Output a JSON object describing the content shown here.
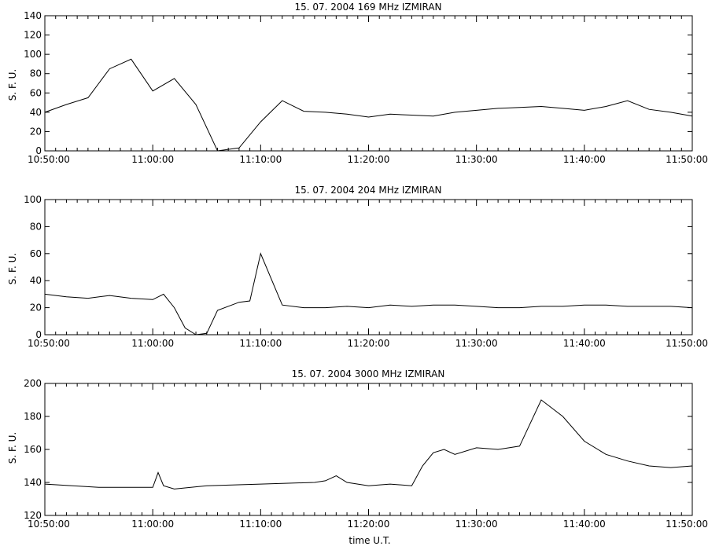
{
  "xlabel": "time U.T.",
  "chart_data": [
    {
      "type": "line",
      "title": "15. 07. 2004   169 MHz   IZMIRAN",
      "ylabel": "S. F. U.",
      "ylim": [
        0,
        140
      ],
      "yticks": [
        0,
        20,
        40,
        60,
        80,
        100,
        120,
        140
      ],
      "xlim": [
        "10:50:00",
        "11:50:00"
      ],
      "xtick_labels": [
        "10:50:00",
        "11:00:00",
        "11:10:00",
        "11:20:00",
        "11:30:00",
        "11:40:00",
        "11:50:00"
      ],
      "series": [
        {
          "x": [
            0,
            2,
            4,
            6,
            8,
            10,
            12,
            14,
            16,
            18,
            20,
            22,
            24,
            26,
            28,
            30,
            32,
            34,
            36,
            38,
            40,
            42,
            44,
            46,
            48,
            50,
            52,
            54,
            56,
            58,
            60
          ],
          "y": [
            40,
            48,
            55,
            85,
            95,
            62,
            75,
            48,
            0,
            3,
            30,
            52,
            41,
            40,
            38,
            35,
            38,
            37,
            36,
            40,
            42,
            44,
            45,
            46,
            44,
            42,
            46,
            52,
            43,
            40,
            36
          ]
        }
      ]
    },
    {
      "type": "line",
      "title": "15. 07. 2004   204 MHz   IZMIRAN",
      "ylabel": "S. F. U.",
      "ylim": [
        0,
        100
      ],
      "yticks": [
        0,
        20,
        40,
        60,
        80,
        100
      ],
      "xlim": [
        "10:50:00",
        "11:50:00"
      ],
      "xtick_labels": [
        "10:50:00",
        "11:00:00",
        "11:10:00",
        "11:20:00",
        "11:30:00",
        "11:40:00",
        "11:50:00"
      ],
      "series": [
        {
          "x": [
            0,
            2,
            4,
            6,
            8,
            10,
            11,
            12,
            13,
            14,
            15,
            16,
            18,
            19,
            20,
            22,
            24,
            26,
            28,
            30,
            32,
            34,
            36,
            38,
            40,
            42,
            44,
            46,
            48,
            50,
            52,
            54,
            56,
            58,
            60
          ],
          "y": [
            30,
            28,
            27,
            29,
            27,
            26,
            30,
            20,
            5,
            0,
            1,
            18,
            24,
            25,
            60,
            22,
            20,
            20,
            21,
            20,
            22,
            21,
            22,
            22,
            21,
            20,
            20,
            21,
            21,
            22,
            22,
            21,
            21,
            21,
            20
          ]
        }
      ]
    },
    {
      "type": "line",
      "title": "15. 07. 2004   3000 MHz   IZMIRAN",
      "ylabel": "S. F. U.",
      "ylim": [
        120,
        200
      ],
      "yticks": [
        120,
        140,
        160,
        180,
        200
      ],
      "xlim": [
        "10:50:00",
        "11:50:00"
      ],
      "xtick_labels": [
        "10:50:00",
        "11:00:00",
        "11:10:00",
        "11:20:00",
        "11:30:00",
        "11:40:00",
        "11:50:00"
      ],
      "series": [
        {
          "x": [
            0,
            5,
            10,
            10.5,
            11,
            12,
            15,
            20,
            25,
            26,
            27,
            28,
            30,
            32,
            34,
            35,
            36,
            37,
            38,
            40,
            42,
            44,
            46,
            48,
            50,
            52,
            54,
            56,
            58,
            60
          ],
          "y": [
            139,
            137,
            137,
            146,
            138,
            136,
            138,
            139,
            140,
            141,
            144,
            140,
            138,
            139,
            138,
            150,
            158,
            160,
            157,
            161,
            160,
            162,
            190,
            180,
            165,
            157,
            153,
            150,
            149,
            150
          ]
        }
      ]
    }
  ]
}
